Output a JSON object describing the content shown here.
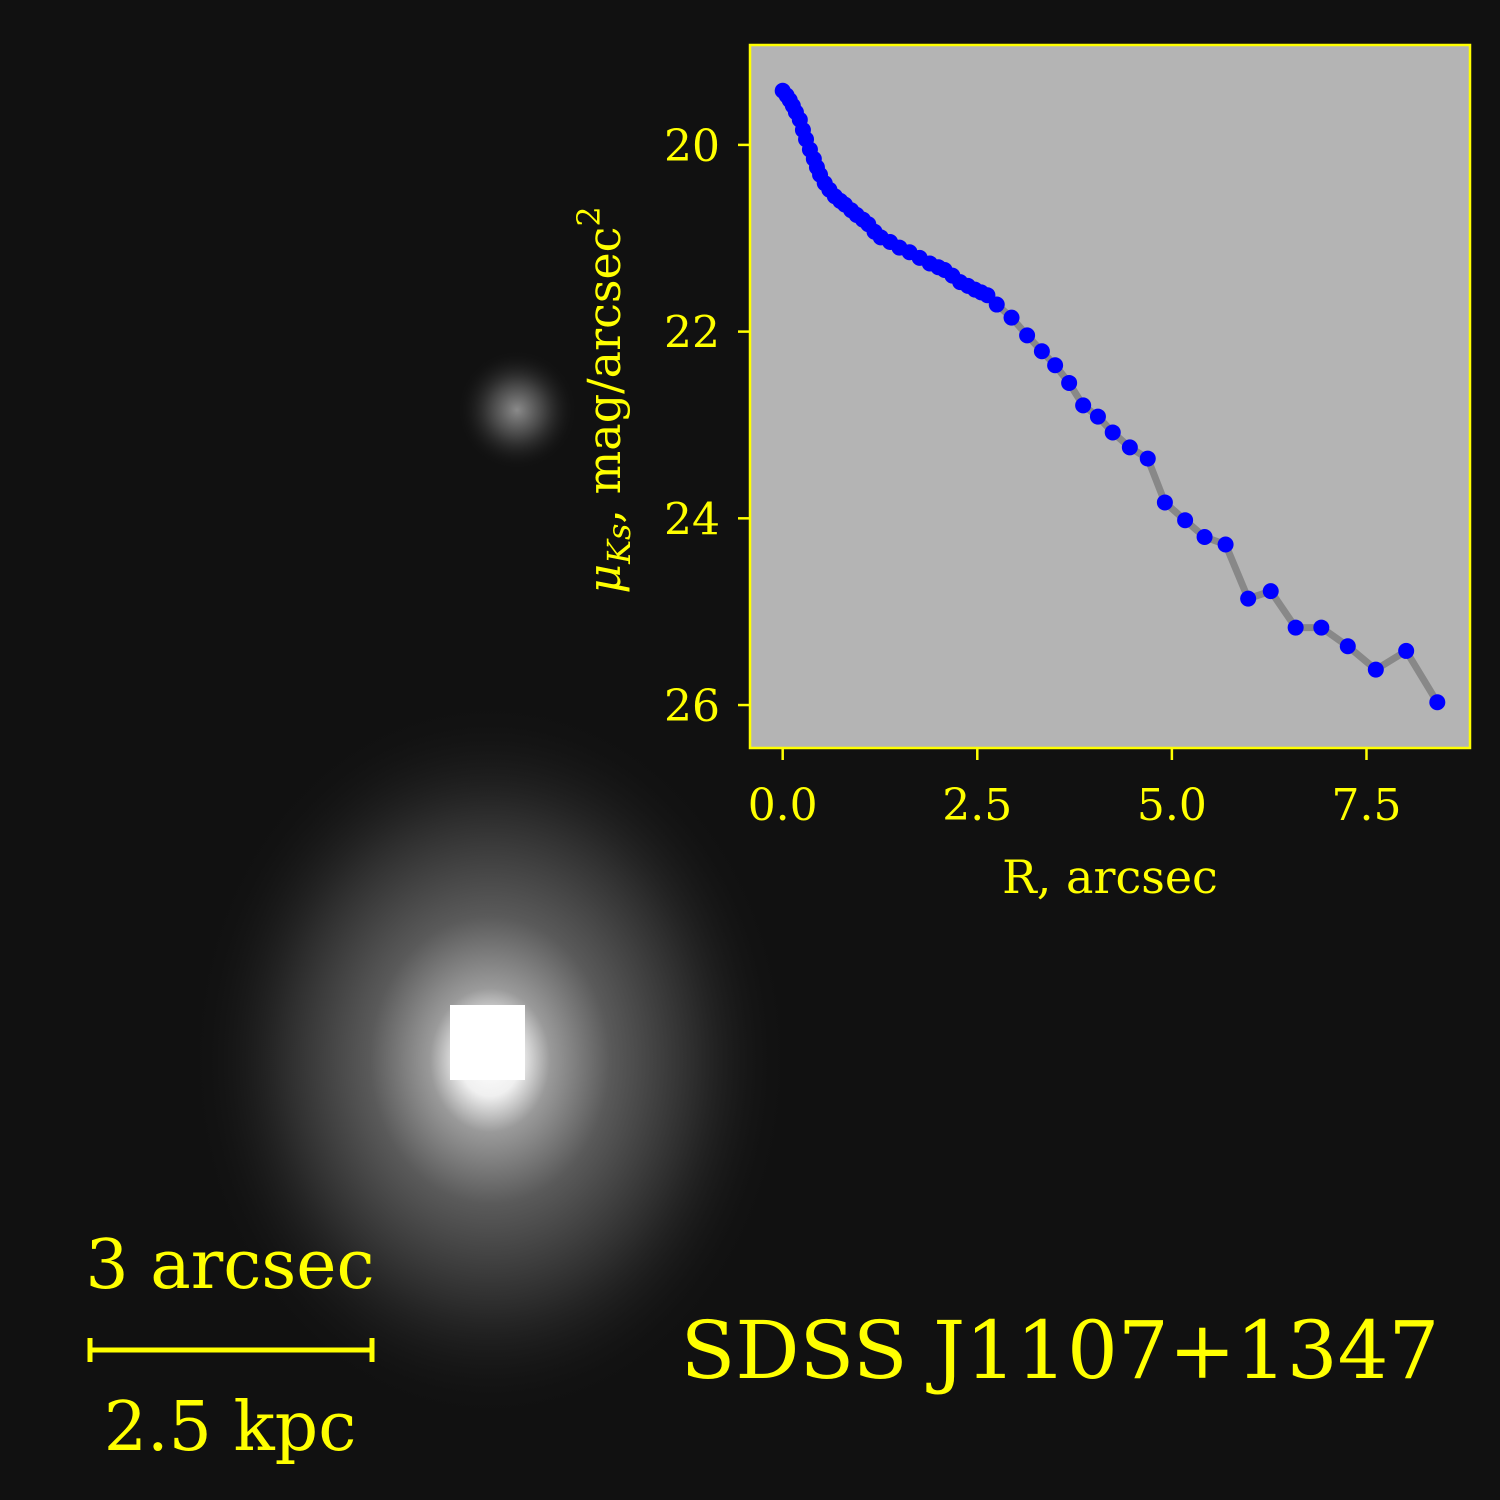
{
  "chart_data": {
    "type": "line",
    "xlabel": "R, arcsec",
    "ylabel": [
      "μ",
      "Ks",
      ", mag/arcsec",
      "2"
    ],
    "x": [
      0.0,
      0.05,
      0.09,
      0.13,
      0.17,
      0.22,
      0.26,
      0.3,
      0.35,
      0.4,
      0.44,
      0.48,
      0.54,
      0.6,
      0.67,
      0.74,
      0.8,
      0.88,
      0.95,
      1.03,
      1.1,
      1.18,
      1.26,
      1.38,
      1.5,
      1.63,
      1.76,
      1.89,
      2.0,
      2.08,
      2.18,
      2.28,
      2.38,
      2.47,
      2.55,
      2.63,
      2.75,
      2.94,
      3.14,
      3.33,
      3.5,
      3.68,
      3.86,
      4.05,
      4.24,
      4.46,
      4.69,
      4.91,
      5.17,
      5.42,
      5.69,
      5.98,
      6.27,
      6.59,
      6.92,
      7.26,
      7.62,
      8.01,
      8.41
    ],
    "series": [
      {
        "name": "profile",
        "color": "#0000ff",
        "line_color": "#808080",
        "values": [
          19.42,
          19.47,
          19.52,
          19.58,
          19.65,
          19.73,
          19.84,
          19.94,
          20.05,
          20.15,
          20.24,
          20.32,
          20.41,
          20.48,
          20.55,
          20.6,
          20.64,
          20.7,
          20.75,
          20.8,
          20.85,
          20.93,
          20.99,
          21.04,
          21.1,
          21.15,
          21.21,
          21.27,
          21.31,
          21.34,
          21.4,
          21.47,
          21.51,
          21.55,
          21.58,
          21.61,
          21.71,
          21.85,
          22.04,
          22.21,
          22.36,
          22.55,
          22.79,
          22.91,
          23.08,
          23.24,
          23.36,
          23.83,
          24.02,
          24.2,
          24.28,
          24.86,
          24.78,
          25.17,
          25.17,
          25.37,
          25.62,
          25.42,
          25.97
        ]
      }
    ],
    "xlim": [
      -0.42,
      8.83
    ],
    "ylim": [
      26.46,
      18.93
    ],
    "xticks": [
      {
        "value": 0,
        "label": "0.0"
      },
      2.5,
      {
        "value": 5,
        "label": "5.0"
      },
      7.5
    ],
    "yticks": [
      20,
      22,
      24,
      26
    ]
  },
  "annotations": {
    "scale_top": "3 arcsec",
    "scale_bottom": "2.5 kpc",
    "object": "SDSS J1107+1347"
  }
}
